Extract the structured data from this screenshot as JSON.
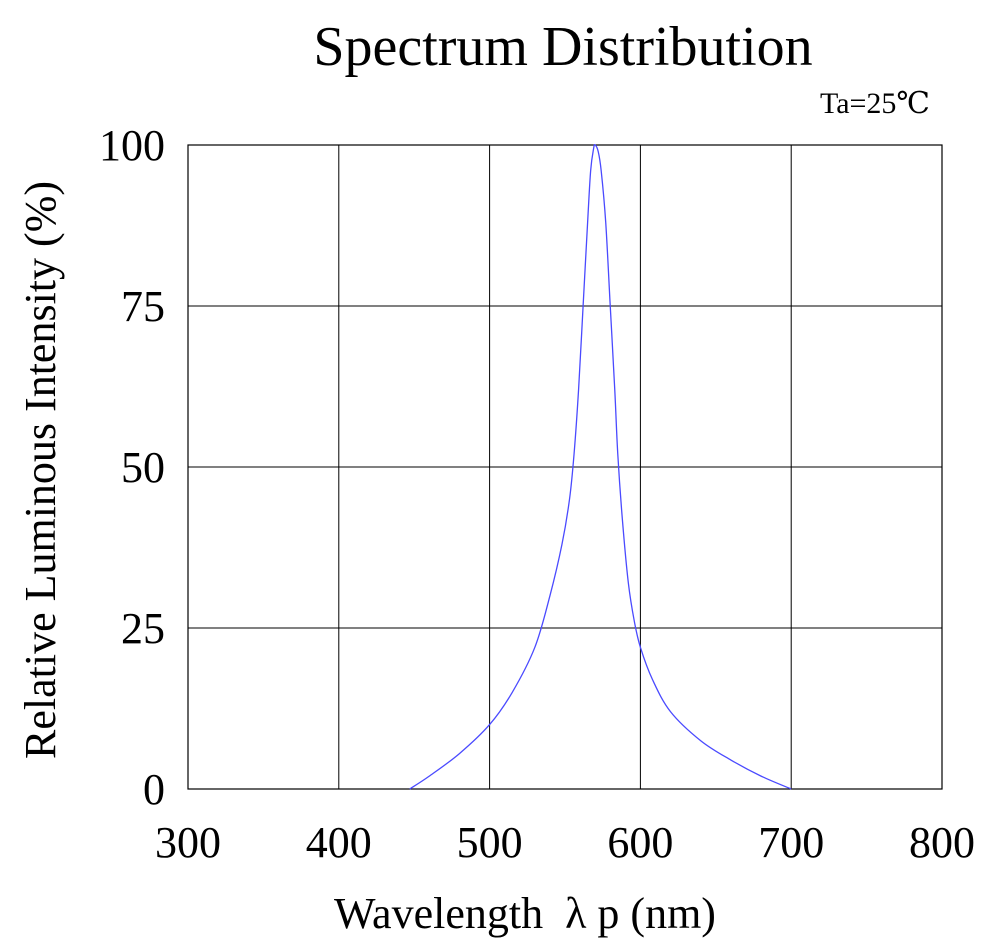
{
  "chart_data": {
    "type": "line",
    "title": "Spectrum Distribution",
    "condition": "Ta=25℃",
    "xlabel": "Wavelength  λ p (nm)",
    "ylabel": "Relative Luminous Intensity (%)",
    "xlim": [
      300,
      800
    ],
    "ylim": [
      0,
      100
    ],
    "x_ticks": [
      "300",
      "400",
      "500",
      "600",
      "700",
      "800"
    ],
    "y_ticks": [
      "100",
      "75",
      "50",
      "25",
      "0"
    ],
    "grid": true,
    "series": [
      {
        "color": "#4a4aff",
        "x": [
          447,
          460,
          480,
          500,
          515,
          530,
          540,
          548,
          553,
          556,
          559,
          562,
          565,
          567,
          569,
          570,
          572,
          574,
          577,
          580,
          583,
          585,
          588,
          592,
          596,
          600,
          608,
          620,
          640,
          660,
          680,
          700
        ],
        "y": [
          0,
          2,
          5.5,
          10,
          15,
          22,
          30,
          38,
          45,
          52,
          62,
          75,
          88,
          96,
          99.5,
          100,
          99,
          96,
          88,
          75,
          62,
          52,
          42,
          32,
          26,
          22,
          17,
          12,
          7.5,
          4.5,
          2,
          0
        ]
      }
    ]
  }
}
